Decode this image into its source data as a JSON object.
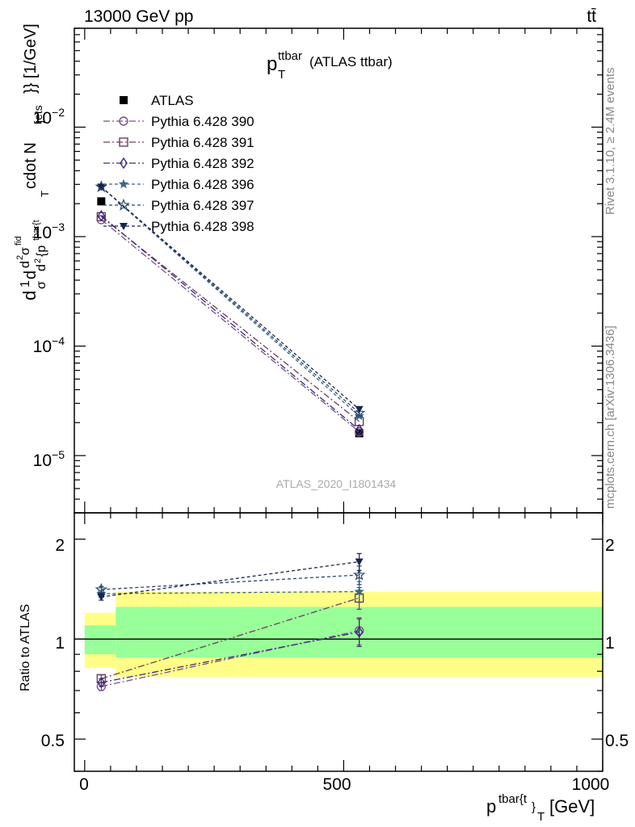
{
  "header": {
    "left": "13000 GeV pp",
    "right": "tt̄"
  },
  "side_labels": {
    "rivet": "Rivet 3.1.10, ≥ 2.4M events",
    "mcplots": "mcplots.cern.ch [arXiv:1306.3436]"
  },
  "colors": {
    "band_inner": "#99ff99",
    "band_outer": "#ffff88",
    "atlas": "#000000"
  },
  "chart_data": [
    {
      "type": "scatter",
      "title": "p_T^ttbar (ATLAS ttbar)",
      "title_main": "p",
      "title_sup": "ttbar",
      "title_sub": "T",
      "title_rest": "(ATLAS ttbar)",
      "ylabel": "d\\frac{1}{\\sigma}d\\frac{d^2\\sigma^{fid}}{d^2 {p^{tbar{t}}_T cdot N_{jets}}} [1/GeV]",
      "ylabel_parts": {
        "a": "d",
        "b": "1",
        "c": "σ",
        "d": "d",
        "e": "d",
        "f": "2",
        "g": "σ",
        "h": "fid",
        "i": "d",
        "j": "2",
        "k": "{p",
        "l": "tbar{t",
        "m": "T",
        "n": "cdot N",
        "o": "jets",
        "p": "}} [1/GeV]"
      },
      "yscale": "log",
      "ylim": [
        3e-06,
        0.08
      ],
      "xlim": [
        -20,
        1000
      ],
      "y_ticks": [
        {
          "value": 1e-05,
          "base": "10",
          "exp": "−5"
        },
        {
          "value": 0.0001,
          "base": "10",
          "exp": "−4"
        },
        {
          "value": 0.001,
          "base": "10",
          "exp": "−3"
        },
        {
          "value": 0.01,
          "base": "10",
          "exp": "−2"
        }
      ],
      "watermark": "ATLAS_2020_I1801434",
      "legend_position": "top-left",
      "series": [
        {
          "name": "ATLAS",
          "marker": "square-filled",
          "color": "#000000",
          "x": [
            32,
            530
          ],
          "y": [
            0.0021,
            1.6e-05
          ]
        },
        {
          "name": "Pythia 6.428 390",
          "marker": "circle-open",
          "color": "#7b4f8e",
          "dash": "8,3,2,3",
          "x": [
            32,
            530
          ],
          "y": [
            0.00143,
            1.65e-05
          ]
        },
        {
          "name": "Pythia 6.428 391",
          "marker": "square-open",
          "color": "#6b3e5e",
          "dash": "8,3,2,3",
          "x": [
            32,
            530
          ],
          "y": [
            0.00152,
            2.05e-05
          ]
        },
        {
          "name": "Pythia 6.428 392",
          "marker": "diamond-open",
          "color": "#3c2a7a",
          "dash": "8,3,2,3",
          "x": [
            32,
            530
          ],
          "y": [
            0.00155,
            1.72e-05
          ]
        },
        {
          "name": "Pythia 6.428 396",
          "marker": "star-filled",
          "color": "#3a6585",
          "dash": "4,3",
          "x": [
            32,
            530
          ],
          "y": [
            0.00285,
            2.3e-05
          ]
        },
        {
          "name": "Pythia 6.428 397",
          "marker": "star-open",
          "color": "#24486b",
          "dash": "4,3",
          "x": [
            32,
            530
          ],
          "y": [
            0.00285,
            2.45e-05
          ]
        },
        {
          "name": "Pythia 6.428 398",
          "marker": "triangle-down-filled",
          "color": "#1a2350",
          "dash": "4,3",
          "x": [
            32,
            530
          ],
          "y": [
            0.00285,
            2.65e-05
          ]
        }
      ]
    },
    {
      "type": "scatter",
      "ylabel": "Ratio to ATLAS",
      "xlabel": "p^{tbar{t}}_T [GeV]",
      "xlabel_main": "p",
      "xlabel_sup": "tbar{t",
      "xlabel_sub": "}",
      "xlabel_sub2": "T",
      "xlabel_unit": "[GeV]",
      "yscale": "log",
      "ylim": [
        0.4,
        2.4
      ],
      "xlim": [
        -20,
        1000
      ],
      "y_ticks": [
        {
          "value": 0.5,
          "label": "0.5"
        },
        {
          "value": 1,
          "label": "1"
        },
        {
          "value": 2,
          "label": "2"
        }
      ],
      "x_ticks": [
        {
          "value": 0,
          "label": "0"
        },
        {
          "value": 500,
          "label": "500"
        },
        {
          "value": 1000,
          "label": "1000"
        }
      ],
      "bands": [
        {
          "x0": 0,
          "x1": 60,
          "inner": [
            0.9,
            1.1
          ],
          "outer": [
            0.82,
            1.2
          ]
        },
        {
          "x0": 60,
          "x1": 1000,
          "inner": [
            0.88,
            1.25
          ],
          "outer": [
            0.77,
            1.39
          ]
        }
      ],
      "series": [
        {
          "name": "Pythia 6.428 390",
          "x": [
            32,
            530
          ],
          "y": [
            0.72,
            1.06
          ],
          "err": [
            0.02,
            0.1
          ]
        },
        {
          "name": "Pythia 6.428 391",
          "x": [
            32,
            530
          ],
          "y": [
            0.76,
            1.33
          ],
          "err": [
            0.02,
            0.1
          ]
        },
        {
          "name": "Pythia 6.428 392",
          "x": [
            32,
            530
          ],
          "y": [
            0.74,
            1.05
          ],
          "err": [
            0.02,
            0.1
          ]
        },
        {
          "name": "Pythia 6.428 396",
          "x": [
            32,
            530
          ],
          "y": [
            1.37,
            1.39
          ],
          "err": [
            0.03,
            0.1
          ]
        },
        {
          "name": "Pythia 6.428 397",
          "x": [
            32,
            530
          ],
          "y": [
            1.41,
            1.56
          ],
          "err": [
            0.03,
            0.1
          ]
        },
        {
          "name": "Pythia 6.428 398",
          "x": [
            32,
            530
          ],
          "y": [
            1.34,
            1.71
          ],
          "err": [
            0.03,
            0.1
          ]
        }
      ]
    }
  ]
}
